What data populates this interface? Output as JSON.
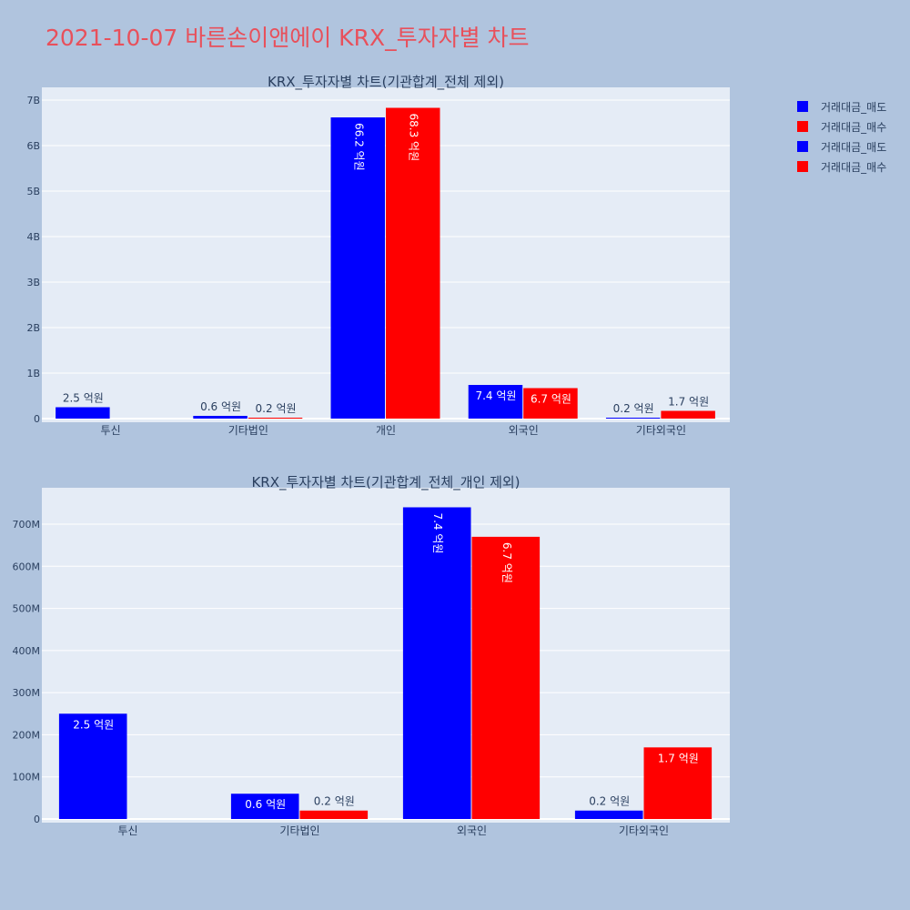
{
  "title": "2021-10-07 바른손이앤에이 KRX_투자자별 차트",
  "colors": {
    "sell": "#0000ff",
    "buy": "#ff0000",
    "plot_bg": "#e5ecf6",
    "page_bg": "#b0c4de",
    "title": "#e8505b"
  },
  "legend": [
    {
      "name": "거래대금_매도",
      "color": "#0000ff"
    },
    {
      "name": "거래대금_매수",
      "color": "#ff0000"
    },
    {
      "name": "거래대금_매도",
      "color": "#0000ff"
    },
    {
      "name": "거래대금_매수",
      "color": "#ff0000"
    }
  ],
  "chart_data": [
    {
      "type": "bar",
      "title": "KRX_투자자별 차트(기관합계_전체 제외)",
      "categories": [
        "투신",
        "기타법인",
        "개인",
        "외국인",
        "기타외국인"
      ],
      "series": [
        {
          "name": "거래대금_매도",
          "values": [
            250000000,
            60000000,
            6620000000,
            740000000,
            20000000
          ],
          "labels": [
            "2.5 억원",
            "0.6 억원",
            "66.2 억원",
            "7.4 억원",
            "0.2 억원"
          ]
        },
        {
          "name": "거래대금_매수",
          "values": [
            0,
            20000000,
            6830000000,
            670000000,
            170000000
          ],
          "labels": [
            "",
            "0.2 억원",
            "68.3 억원",
            "6.7 억원",
            "1.7 억원"
          ]
        }
      ],
      "yticks": [
        "0",
        "1B",
        "2B",
        "3B",
        "4B",
        "5B",
        "6B",
        "7B"
      ],
      "ylim": [
        0,
        7000000000
      ]
    },
    {
      "type": "bar",
      "title": "KRX_투자자별 차트(기관합계_전체_개인 제외)",
      "categories": [
        "투신",
        "기타법인",
        "외국인",
        "기타외국인"
      ],
      "series": [
        {
          "name": "거래대금_매도",
          "values": [
            250000000,
            60000000,
            740000000,
            20000000
          ],
          "labels": [
            "2.5 억원",
            "0.6 억원",
            "7.4 억원",
            "0.2 억원"
          ]
        },
        {
          "name": "거래대금_매수",
          "values": [
            0,
            20000000,
            670000000,
            170000000
          ],
          "labels": [
            "",
            "0.2 억원",
            "6.7 억원",
            "1.7 억원"
          ]
        }
      ],
      "yticks": [
        "0",
        "100M",
        "200M",
        "300M",
        "400M",
        "500M",
        "600M",
        "700M"
      ],
      "ylim": [
        0,
        700000000
      ]
    }
  ]
}
